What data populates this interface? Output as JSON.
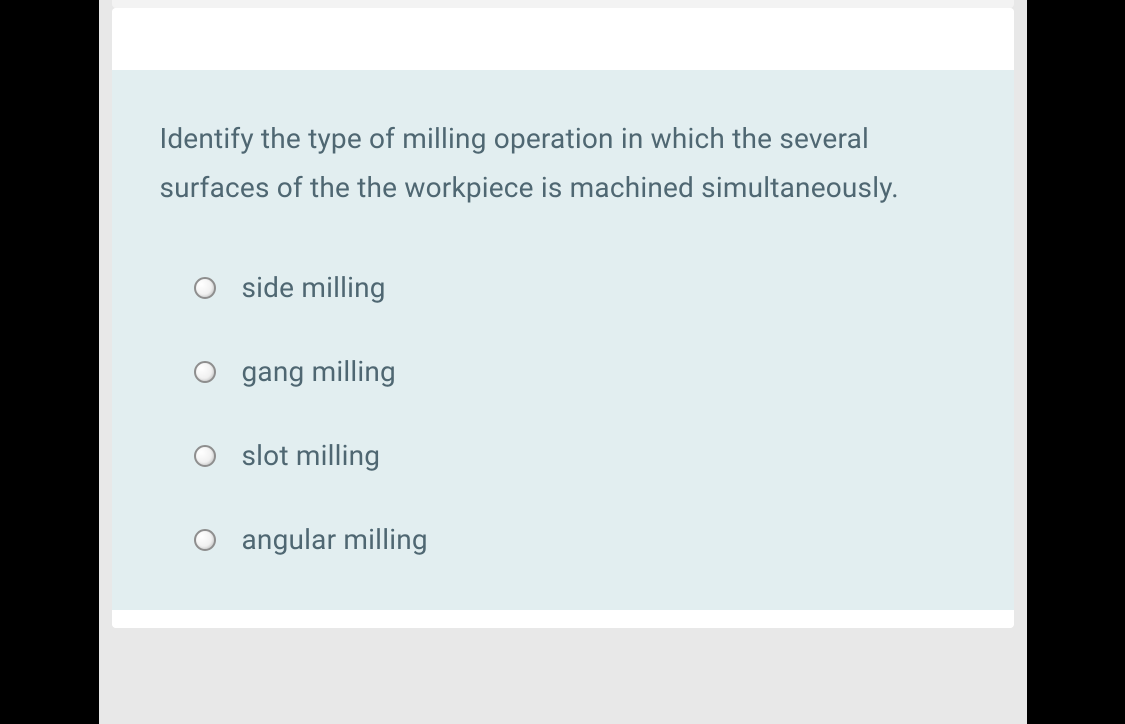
{
  "colors": {
    "outer_background": "#000000",
    "page_background": "#e8e8e8",
    "card_background": "#ffffff",
    "question_panel_background": "#e2eef0",
    "text": "#4f6772",
    "radio_border": "#8e8e8e"
  },
  "question": {
    "text": "Identify the type of milling operation in which the several surfaces of the the workpiece is machined simultaneously.",
    "font_size": 28
  },
  "answers": [
    {
      "label": "side milling",
      "selected": false
    },
    {
      "label": "gang milling",
      "selected": false
    },
    {
      "label": "slot milling",
      "selected": false
    },
    {
      "label": "angular milling",
      "selected": false
    }
  ]
}
